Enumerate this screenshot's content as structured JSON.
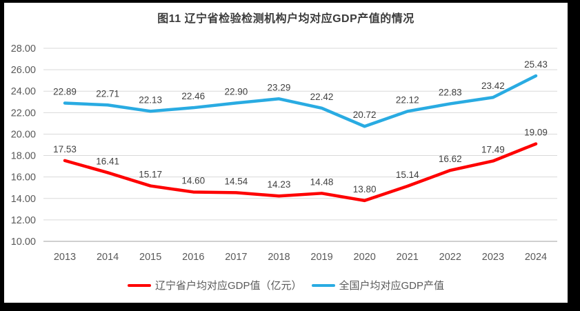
{
  "chart_data": {
    "type": "line",
    "title": "图11 辽宁省检验检测机构户均对应GDP产值的情况",
    "categories": [
      "2013",
      "2014",
      "2015",
      "2016",
      "2017",
      "2018",
      "2019",
      "2020",
      "2021",
      "2022",
      "2023",
      "2024"
    ],
    "series": [
      {
        "name": "辽宁省户均对应GDP值（亿元）",
        "color": "#fe0000",
        "values": [
          17.53,
          16.41,
          15.17,
          14.6,
          14.54,
          14.23,
          14.48,
          13.8,
          15.14,
          16.62,
          17.49,
          19.09
        ]
      },
      {
        "name": "全国户均对应GDP产值",
        "color": "#29abe2",
        "values": [
          22.89,
          22.71,
          22.13,
          22.46,
          22.9,
          23.29,
          22.42,
          20.72,
          22.12,
          22.83,
          23.42,
          25.43
        ]
      }
    ],
    "ylim": [
      10,
      28
    ],
    "ytick_step": 2,
    "ytick_format_decimals": 2,
    "grid": true,
    "data_labels": true,
    "legend_position": "bottom"
  },
  "colors": {
    "frame_border": "#000000",
    "chart_background": "#ffffff",
    "gridline": "#d9d9d9",
    "axis_line": "#bfbfbf",
    "tick_text": "#595959",
    "data_label_text": "#404040",
    "title_text": "#3b3b3b"
  }
}
